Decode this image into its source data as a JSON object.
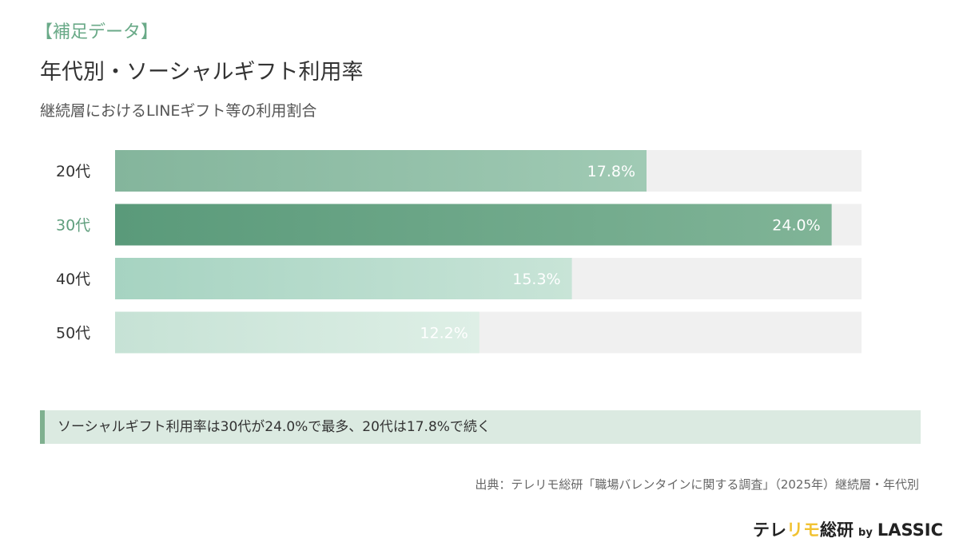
{
  "header": {
    "tag": "【補足データ】",
    "title": "年代別・ソーシャルギフト利用率",
    "subtitle": "継続層におけるLINEギフト等の利用割合"
  },
  "chart_data": {
    "type": "bar",
    "orientation": "horizontal",
    "categories": [
      "20代",
      "30代",
      "40代",
      "50代"
    ],
    "values": [
      17.8,
      24.0,
      15.3,
      12.2
    ],
    "labels": [
      "17.8%",
      "24.0%",
      "15.3%",
      "12.2%"
    ],
    "xlim": [
      0,
      25
    ],
    "grid": false,
    "highlight": "30代",
    "colors": {
      "highlight_label": "#5f9e7d",
      "track": "#f0f0f0",
      "bars": [
        [
          "#84b59c",
          "#a0cab4"
        ],
        [
          "#5a9a7a",
          "#80b497"
        ],
        [
          "#a6d3c1",
          "#c8e4d7"
        ],
        [
          "#c6e2d5",
          "#deefe6"
        ]
      ]
    }
  },
  "callout": "ソーシャルギフト利用率は30代が24.0%で最多、20代は17.8%で続く",
  "source": "出典：テレリモ総研「職場バレンタインに関する調査」（2025年）継続層・年代別",
  "logo": {
    "a": "テレ",
    "b": "リモ",
    "c": "総研",
    "by": "by",
    "d": "LASSIC"
  }
}
